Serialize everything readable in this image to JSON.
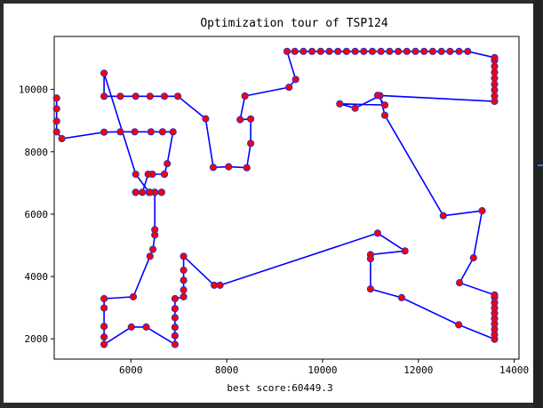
{
  "chart_data": {
    "type": "line",
    "title": "Optimization tour of TSP124",
    "xlabel": "best score:60449.3",
    "ylabel": "",
    "xlim": [
      4400,
      14100
    ],
    "ylim": [
      1350,
      11700
    ],
    "xticks": [
      6000,
      8000,
      10000,
      12000,
      14000
    ],
    "yticks": [
      2000,
      4000,
      6000,
      8000,
      10000
    ],
    "grid": false,
    "series": [
      {
        "line_color": "#0000ff",
        "marker_face": "#ff0000",
        "marker_edge": "#3030c0",
        "x": [
          4450,
          4450,
          4450,
          4450,
          4560,
          5440,
          5780,
          6080,
          6420,
          6660,
          6880,
          6760,
          6700,
          6700,
          6450,
          6360,
          6240,
          6500,
          6500,
          6500,
          6500,
          6460,
          6400,
          6050,
          5440,
          5440,
          5440,
          5440,
          5440,
          6010,
          6320,
          6920,
          6920,
          6920,
          6920,
          6920,
          6920,
          7100,
          7100,
          7100,
          7100,
          7100,
          7740,
          7860,
          11150,
          11720,
          11000,
          11000,
          11000,
          11650,
          12840,
          13590,
          13590,
          13590,
          13590,
          13590,
          13590,
          13590,
          13590,
          13590,
          13590,
          12860,
          13150,
          13330,
          12520,
          11300,
          11200,
          10680,
          10360,
          11300,
          11150,
          13590,
          13590,
          13590,
          13590,
          13590,
          13590,
          13590,
          13590,
          13590,
          13030,
          12850,
          12660,
          12480,
          12300,
          12120,
          11940,
          11760,
          11580,
          11400,
          11220,
          11040,
          10860,
          10680,
          10500,
          10320,
          10140,
          9960,
          9780,
          9600,
          9420,
          9260,
          9440,
          9300,
          8380,
          8280,
          8500,
          8500,
          8420,
          8040,
          7720,
          7560,
          6980,
          6700,
          6400,
          6100,
          5780,
          5440,
          5440,
          6100,
          6380,
          6640,
          6640,
          6400,
          6100,
          6100
        ],
        "y": [
          9720,
          9380,
          8980,
          8640,
          8420,
          8630,
          8640,
          8640,
          8640,
          8640,
          8640,
          7620,
          7280,
          7280,
          7280,
          7280,
          6700,
          6700,
          6700,
          5500,
          5330,
          4870,
          4650,
          3350,
          3290,
          2990,
          2400,
          2060,
          1820,
          2380,
          2380,
          1820,
          2100,
          2370,
          2680,
          2970,
          3290,
          3350,
          3570,
          3880,
          4200,
          4650,
          3720,
          3720,
          5390,
          4820,
          4700,
          4570,
          3600,
          3320,
          2450,
          1990,
          2140,
          2310,
          2480,
          2650,
          2820,
          2990,
          3160,
          3330,
          3410,
          3800,
          4600,
          6110,
          5950,
          9170,
          9800,
          9400,
          9540,
          9500,
          9810,
          9620,
          9790,
          9980,
          10170,
          10360,
          10550,
          10740,
          10930,
          11020,
          11220,
          11220,
          11220,
          11220,
          11220,
          11220,
          11220,
          11220,
          11220,
          11220,
          11220,
          11220,
          11220,
          11220,
          11220,
          11220,
          11220,
          11220,
          11220,
          11220,
          11220,
          11220,
          10320,
          10070,
          9790,
          9030,
          9050,
          8270,
          7490,
          7520,
          7500,
          9060,
          9780,
          9780,
          9780,
          9780,
          9780,
          9780,
          10520,
          7280,
          6700,
          6700,
          6700,
          6700,
          6700,
          6700
        ]
      }
    ]
  }
}
